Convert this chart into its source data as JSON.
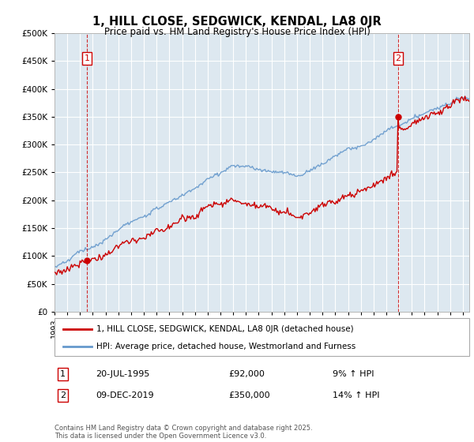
{
  "title": "1, HILL CLOSE, SEDGWICK, KENDAL, LA8 0JR",
  "subtitle": "Price paid vs. HM Land Registry's House Price Index (HPI)",
  "legend_label1": "1, HILL CLOSE, SEDGWICK, KENDAL, LA8 0JR (detached house)",
  "legend_label2": "HPI: Average price, detached house, Westmorland and Furness",
  "transaction1_date": "20-JUL-1995",
  "transaction1_price": "£92,000",
  "transaction1_hpi": "9% ↑ HPI",
  "transaction2_date": "09-DEC-2019",
  "transaction2_price": "£350,000",
  "transaction2_hpi": "14% ↑ HPI",
  "footer": "Contains HM Land Registry data © Crown copyright and database right 2025.\nThis data is licensed under the Open Government Licence v3.0.",
  "line1_color": "#cc0000",
  "line2_color": "#6699cc",
  "dot_color": "#cc0000",
  "background_color": "#ffffff",
  "chart_bg_color": "#dde8f0",
  "grid_color": "#ffffff",
  "ylim": [
    0,
    500000
  ],
  "yticks": [
    0,
    50000,
    100000,
    150000,
    200000,
    250000,
    300000,
    350000,
    400000,
    450000,
    500000
  ],
  "x_start_year": 1993,
  "x_end_year": 2025,
  "t1_year": 1995.54,
  "t2_year": 2019.92,
  "price_t1": 92000,
  "price_t2": 350000
}
